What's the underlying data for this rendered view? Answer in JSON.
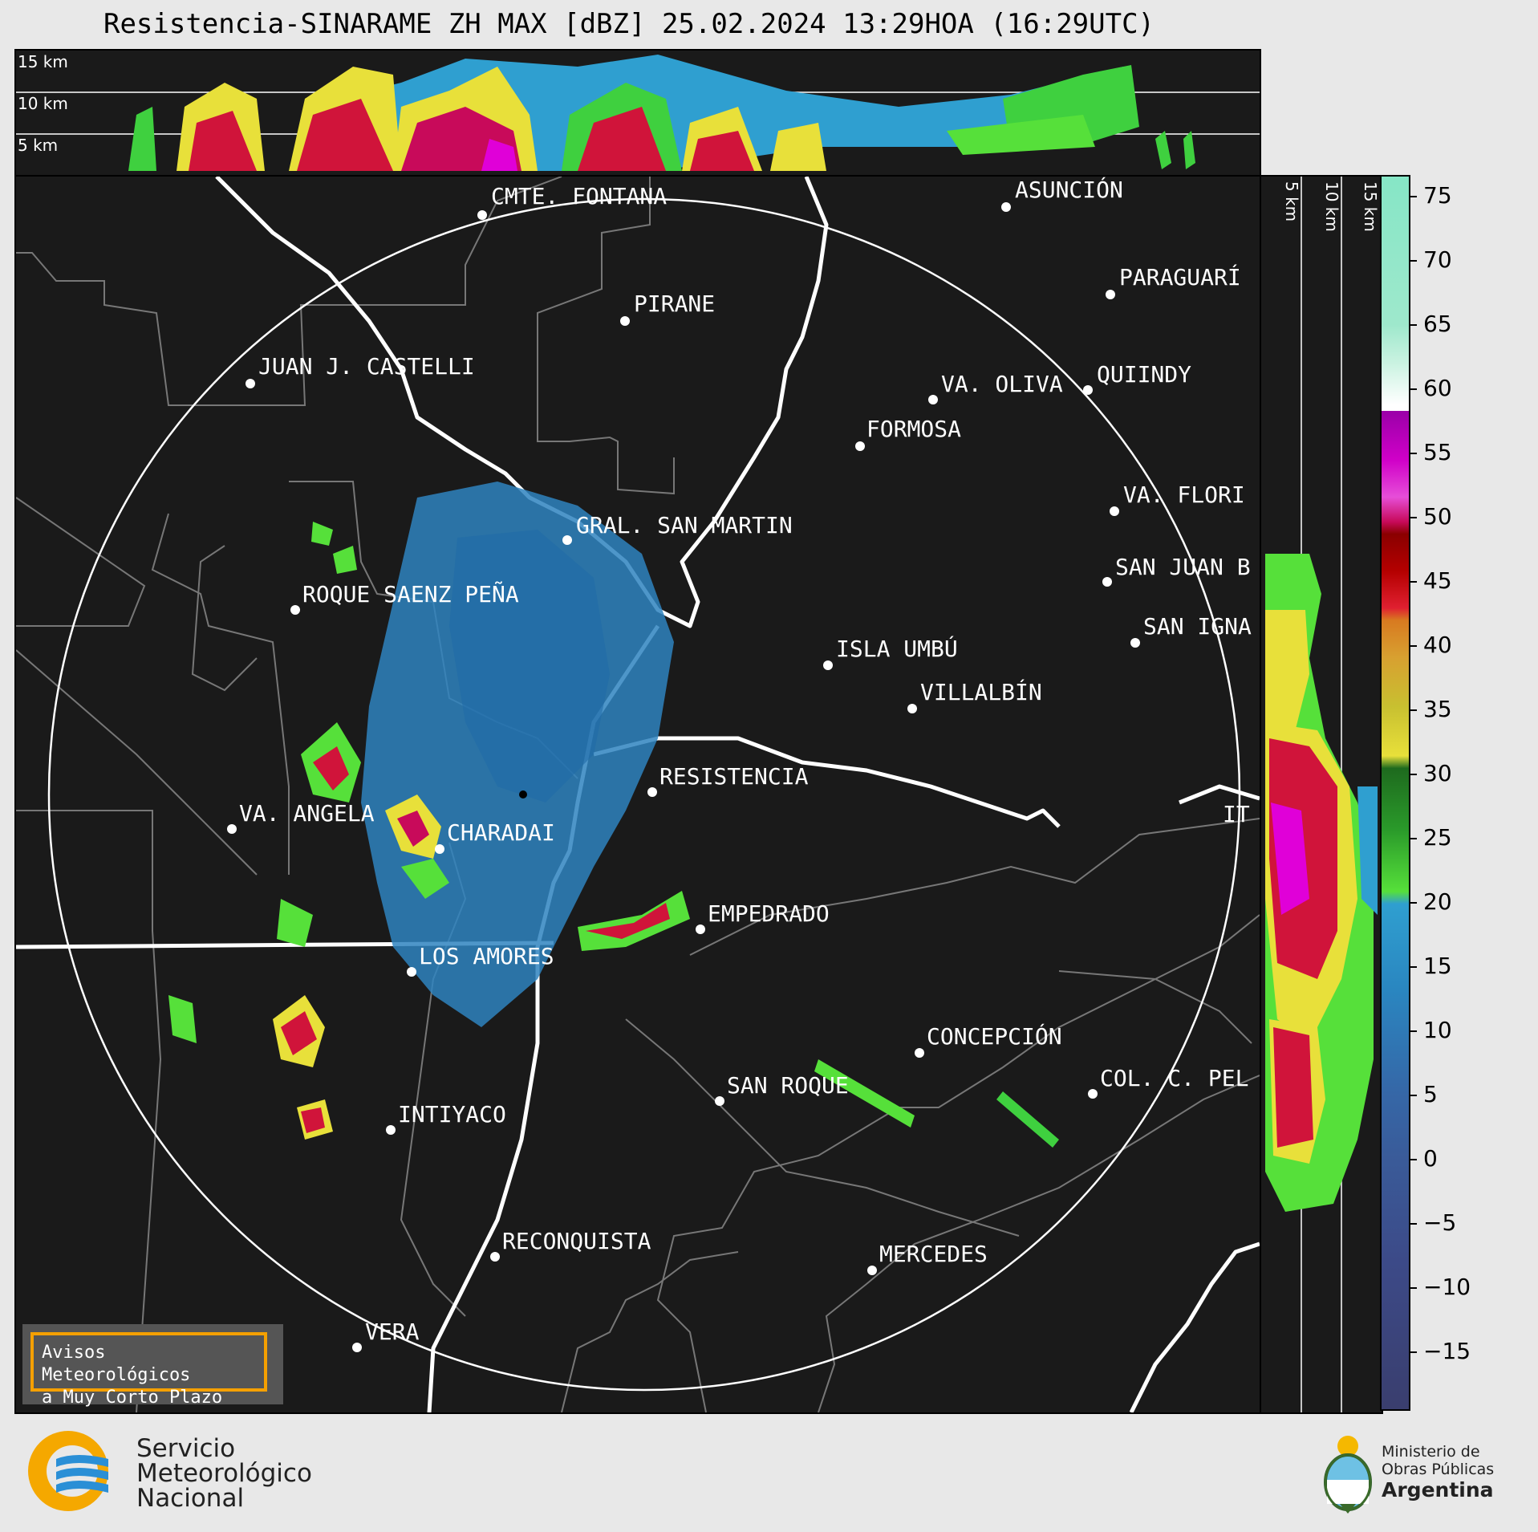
{
  "title": "Resistencia-SINARAME ZH MAX [dBZ] 25.02.2024 13:29HOA (16:29UTC)",
  "top_panel": {
    "height_labels": [
      "15 km",
      "10 km",
      "5 km"
    ]
  },
  "side_panel": {
    "height_labels": [
      "5 km",
      "10 km",
      "15 km"
    ]
  },
  "cities": [
    {
      "name": "CMTE. FONTANA"
    },
    {
      "name": "ASUNCIÓN"
    },
    {
      "name": "PIRANE"
    },
    {
      "name": "PARAGUARÍ"
    },
    {
      "name": "JUAN J. CASTELLI"
    },
    {
      "name": "VA. OLIVA"
    },
    {
      "name": "QUIINDY"
    },
    {
      "name": "FORMOSA"
    },
    {
      "name": "VA. FLORI"
    },
    {
      "name": "GRAL. SAN MARTIN"
    },
    {
      "name": "SAN JUAN B"
    },
    {
      "name": "ROQUE SAENZ PEÑA"
    },
    {
      "name": "SAN IGNA"
    },
    {
      "name": "ISLA UMBÚ"
    },
    {
      "name": "VILLALBÍN"
    },
    {
      "name": "RESISTENCIA"
    },
    {
      "name": "IT"
    },
    {
      "name": "VA. ANGELA"
    },
    {
      "name": "CHARADAI"
    },
    {
      "name": "EMPEDRADO"
    },
    {
      "name": "LOS AMORES"
    },
    {
      "name": "CONCEPCIÓN"
    },
    {
      "name": "SAN ROQUE"
    },
    {
      "name": "COL. C. PEL"
    },
    {
      "name": "INTIYACO"
    },
    {
      "name": "RECONQUISTA"
    },
    {
      "name": "MERCEDES"
    },
    {
      "name": "VERA"
    }
  ],
  "colorbar": {
    "unit": "dBZ",
    "range": [
      -20,
      77
    ],
    "ticks": [
      "75",
      "70",
      "65",
      "60",
      "55",
      "50",
      "45",
      "40",
      "35",
      "30",
      "25",
      "20",
      "15",
      "10",
      "5",
      "0",
      "−5",
      "−10",
      "−15"
    ]
  },
  "warning_box": {
    "line1": "Avisos Meteorológicos",
    "line2": "a Muy Corto Plazo"
  },
  "smn_logo": {
    "line1": "Servicio",
    "line2": "Meteorológico",
    "line3": "Nacional"
  },
  "ministry_logo": {
    "line1": "Ministerio de",
    "line2": "Obras Públicas",
    "line3": "Argentina"
  }
}
